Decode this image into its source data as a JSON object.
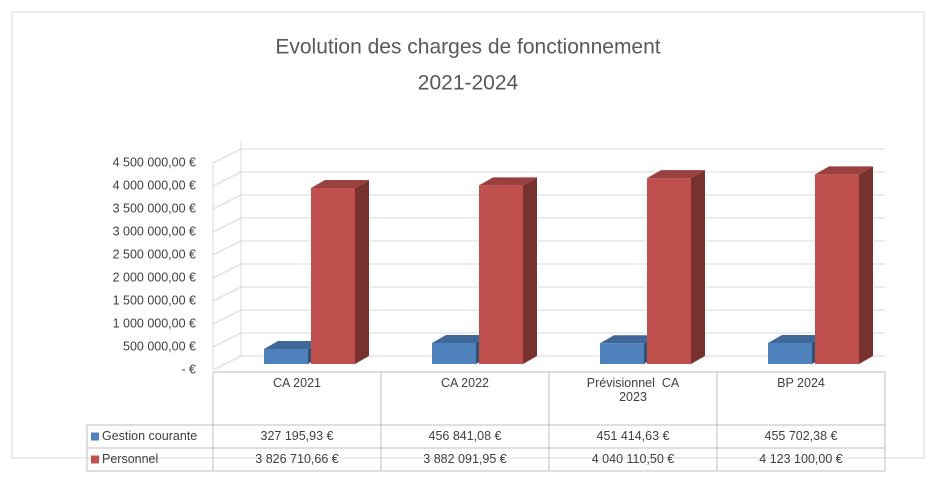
{
  "chart_data": {
    "type": "bar3d",
    "title": "Evolution des charges de fonctionnement",
    "subtitle": "2021-2024",
    "categories": [
      "CA 2021",
      "CA 2022",
      "Prévisionnel  CA 2023",
      "BP 2024"
    ],
    "series": [
      {
        "name": "Gestion courante",
        "color": "#4f81bd",
        "values": [
          327195.93,
          456841.08,
          451414.63,
          455702.38
        ],
        "value_labels": [
          "327 195,93 €",
          "456 841,08 €",
          "451 414,63 €",
          "455 702,38 €"
        ]
      },
      {
        "name": "Personnel",
        "color": "#c0504d",
        "values": [
          3826710.66,
          3882091.95,
          4040110.5,
          4123100.0
        ],
        "value_labels": [
          "3 826 710,66 €",
          "3 882 091,95 €",
          "4 040 110,50 €",
          "4 123 100,00 €"
        ]
      }
    ],
    "ylim": [
      0,
      4500000
    ],
    "yticks": [
      {
        "value": 0,
        "label": "-  €"
      },
      {
        "value": 500000,
        "label": "500 000,00 €"
      },
      {
        "value": 1000000,
        "label": "1 000 000,00 €"
      },
      {
        "value": 1500000,
        "label": "1 500 000,00 €"
      },
      {
        "value": 2000000,
        "label": "2 000 000,00 €"
      },
      {
        "value": 2500000,
        "label": "2 500 000,00 €"
      },
      {
        "value": 3000000,
        "label": "3 000 000,00 €"
      },
      {
        "value": 3500000,
        "label": "3 500 000,00 €"
      },
      {
        "value": 4000000,
        "label": "4 000 000,00 €"
      },
      {
        "value": 4500000,
        "label": "4 500 000,00 €"
      }
    ],
    "grid": true
  }
}
